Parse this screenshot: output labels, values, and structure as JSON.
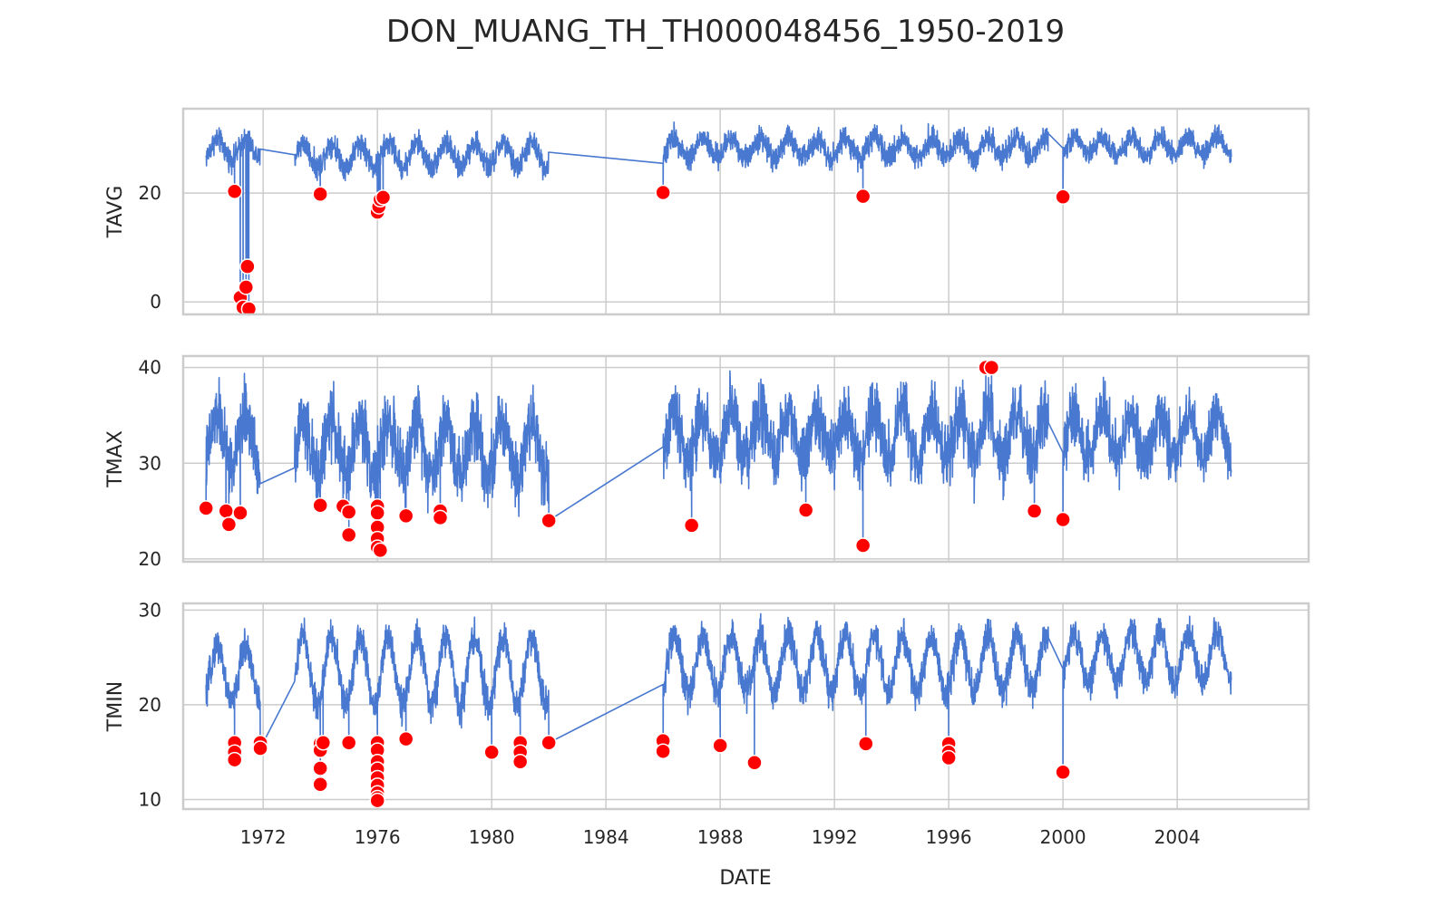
{
  "title": "DON_MUANG_TH_TH000048456_1950-2019",
  "colors": {
    "line": "#4878cf",
    "outlier": "#ff0000",
    "outlier_edge": "#ffffff",
    "grid": "#cccccc",
    "frame": "#cccccc"
  },
  "chart_data": {
    "type": "line",
    "layout": "3 vertically stacked panels sharing the x axis",
    "x_axis": {
      "label": "DATE",
      "range": [
        1969.2,
        2008.6
      ],
      "ticks": [
        1972,
        1976,
        1980,
        1984,
        1988,
        1992,
        1996,
        2000,
        2004
      ],
      "tick_labels": [
        "1972",
        "1976",
        "1980",
        "1984",
        "1988",
        "1992",
        "1996",
        "2000",
        "2004"
      ],
      "grid": true
    },
    "series_style": "daily values drawn as thin blue line; outliers marked as red dots with white edge",
    "panels": [
      {
        "ylabel": "TAVG",
        "ylim": [
          -2.3,
          35.5
        ],
        "yticks": [
          0,
          20
        ],
        "tick_labels": [
          "0",
          "20"
        ],
        "segments": [
          {
            "start": 1970.0,
            "end": 1971.9,
            "base": 28.0,
            "amp": 1.8,
            "noise": 1.6
          },
          {
            "start": 1973.1,
            "end": 1982.0,
            "base": 27.0,
            "amp": 2.2,
            "noise": 1.7
          },
          {
            "start": 1986.0,
            "end": 1999.5,
            "base": 28.3,
            "amp": 1.8,
            "noise": 1.7
          },
          {
            "start": 2000.0,
            "end": 2005.9,
            "base": 28.6,
            "amp": 1.6,
            "noise": 1.5
          }
        ],
        "outliers": [
          [
            1971.0,
            20.3
          ],
          [
            1971.2,
            0.8
          ],
          [
            1971.3,
            -1.0
          ],
          [
            1971.4,
            2.7
          ],
          [
            1971.45,
            6.5
          ],
          [
            1971.5,
            -1.3
          ],
          [
            1974.0,
            19.8
          ],
          [
            1976.0,
            16.5
          ],
          [
            1976.05,
            17.5
          ],
          [
            1976.1,
            18.8
          ],
          [
            1976.2,
            19.2
          ],
          [
            1986.0,
            20.1
          ],
          [
            1993.0,
            19.4
          ],
          [
            2000.0,
            19.3
          ]
        ]
      },
      {
        "ylabel": "TMAX",
        "ylim": [
          19.7,
          41.2
        ],
        "yticks": [
          20,
          30,
          40
        ],
        "tick_labels": [
          "20",
          "30",
          "40"
        ],
        "segments": [
          {
            "start": 1970.0,
            "end": 1971.9,
            "base": 32.3,
            "amp": 2.6,
            "noise": 2.6
          },
          {
            "start": 1973.1,
            "end": 1982.0,
            "base": 31.7,
            "amp": 2.8,
            "noise": 2.7
          },
          {
            "start": 1986.0,
            "end": 1999.5,
            "base": 32.8,
            "amp": 2.4,
            "noise": 2.6
          },
          {
            "start": 2000.0,
            "end": 2005.9,
            "base": 32.9,
            "amp": 2.2,
            "noise": 2.3
          }
        ],
        "outliers": [
          [
            1970.0,
            25.3
          ],
          [
            1970.7,
            25.0
          ],
          [
            1970.8,
            23.6
          ],
          [
            1971.2,
            24.8
          ],
          [
            1974.0,
            25.6
          ],
          [
            1974.8,
            25.5
          ],
          [
            1975.0,
            24.9
          ],
          [
            1975.0,
            22.5
          ],
          [
            1976.0,
            25.5
          ],
          [
            1976.0,
            24.8
          ],
          [
            1976.0,
            23.3
          ],
          [
            1976.0,
            22.1
          ],
          [
            1976.0,
            21.2
          ],
          [
            1976.1,
            20.9
          ],
          [
            1977.0,
            24.5
          ],
          [
            1978.2,
            25.0
          ],
          [
            1978.2,
            24.3
          ],
          [
            1982.0,
            24.0
          ],
          [
            1987.0,
            23.5
          ],
          [
            1991.0,
            25.1
          ],
          [
            1993.0,
            21.4
          ],
          [
            1997.3,
            40.0
          ],
          [
            1997.5,
            40.0
          ],
          [
            1999.0,
            25.0
          ],
          [
            2000.0,
            24.1
          ]
        ]
      },
      {
        "ylabel": "TMIN",
        "ylim": [
          9.0,
          30.7
        ],
        "yticks": [
          10,
          20,
          30
        ],
        "tick_labels": [
          "10",
          "20",
          "30"
        ],
        "segments": [
          {
            "start": 1970.0,
            "end": 1971.9,
            "base": 23.3,
            "amp": 3.0,
            "noise": 1.3
          },
          {
            "start": 1973.1,
            "end": 1982.0,
            "base": 23.6,
            "amp": 3.6,
            "noise": 1.4
          },
          {
            "start": 1986.0,
            "end": 1999.5,
            "base": 24.3,
            "amp": 3.0,
            "noise": 1.4
          },
          {
            "start": 2000.0,
            "end": 2005.9,
            "base": 25.0,
            "amp": 2.6,
            "noise": 1.3
          }
        ],
        "outliers": [
          [
            1971.0,
            16.0
          ],
          [
            1971.0,
            15.0
          ],
          [
            1971.0,
            14.2
          ],
          [
            1971.9,
            16.0
          ],
          [
            1971.9,
            15.4
          ],
          [
            1974.0,
            15.9
          ],
          [
            1974.0,
            15.2
          ],
          [
            1974.0,
            13.3
          ],
          [
            1974.0,
            11.6
          ],
          [
            1974.1,
            16.0
          ],
          [
            1975.0,
            16.0
          ],
          [
            1976.0,
            16.0
          ],
          [
            1976.0,
            15.2
          ],
          [
            1976.0,
            14.0
          ],
          [
            1976.0,
            13.2
          ],
          [
            1976.0,
            12.3
          ],
          [
            1976.0,
            11.5
          ],
          [
            1976.0,
            10.7
          ],
          [
            1976.0,
            10.2
          ],
          [
            1976.0,
            9.9
          ],
          [
            1977.0,
            16.4
          ],
          [
            1980.0,
            15.0
          ],
          [
            1981.0,
            16.0
          ],
          [
            1981.0,
            15.0
          ],
          [
            1981.0,
            14.0
          ],
          [
            1982.0,
            16.0
          ],
          [
            1986.0,
            16.2
          ],
          [
            1986.0,
            15.1
          ],
          [
            1988.0,
            15.7
          ],
          [
            1989.2,
            13.9
          ],
          [
            1993.1,
            15.9
          ],
          [
            1996.0,
            15.9
          ],
          [
            1996.0,
            15.0
          ],
          [
            1996.0,
            14.4
          ],
          [
            2000.0,
            12.9
          ]
        ]
      }
    ]
  }
}
